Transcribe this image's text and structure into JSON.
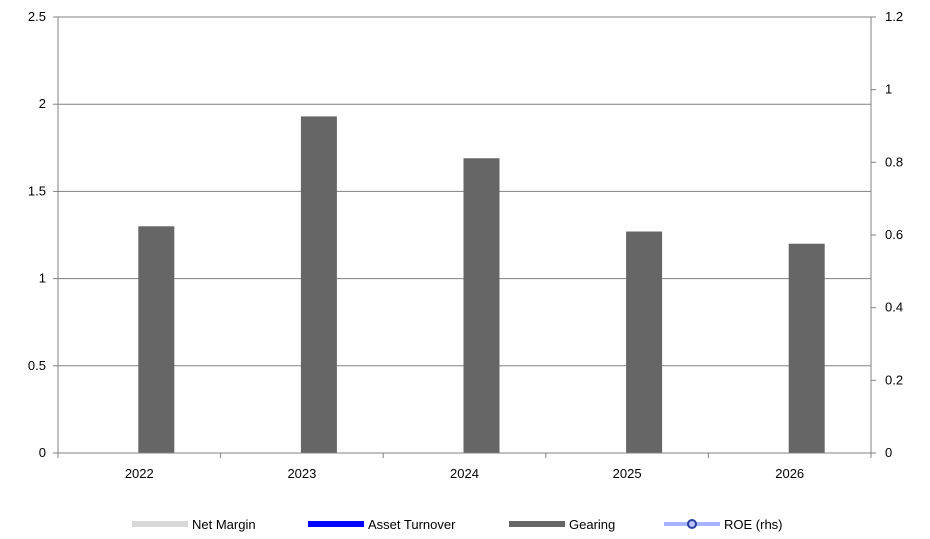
{
  "colors": {
    "net_margin": "#d9d9d9",
    "asset_turnover": "#0000ff",
    "gearing": "#666666",
    "roe": "#a6b4ff",
    "grid": "#808080"
  },
  "legend": {
    "net_margin": "Net Margin",
    "asset_turnover": "Asset Turnover",
    "gearing": "Gearing",
    "roe": "ROE (rhs)"
  },
  "chart_data": {
    "type": "bar",
    "categories": [
      "2022",
      "2023",
      "2024",
      "2025",
      "2026"
    ],
    "series": [
      {
        "name": "Net Margin",
        "values": [
          null,
          null,
          null,
          null,
          null
        ],
        "axis": "left"
      },
      {
        "name": "Asset Turnover",
        "values": [
          null,
          null,
          null,
          null,
          null
        ],
        "axis": "left"
      },
      {
        "name": "Gearing",
        "values": [
          1.3,
          1.93,
          1.69,
          1.27,
          1.2
        ],
        "axis": "left"
      },
      {
        "name": "ROE (rhs)",
        "values": [
          null,
          null,
          null,
          null,
          null
        ],
        "axis": "right",
        "type": "line"
      }
    ],
    "ylim": [
      0,
      2.5
    ],
    "yticks": [
      "0",
      "0.5",
      "1",
      "1.5",
      "2",
      "2.5"
    ],
    "y2lim": [
      0,
      1.2
    ],
    "y2ticks": [
      "0",
      "0.2",
      "0.4",
      "0.6",
      "0.8",
      "1",
      "1.2"
    ],
    "grid": true,
    "legend_position": "bottom"
  }
}
